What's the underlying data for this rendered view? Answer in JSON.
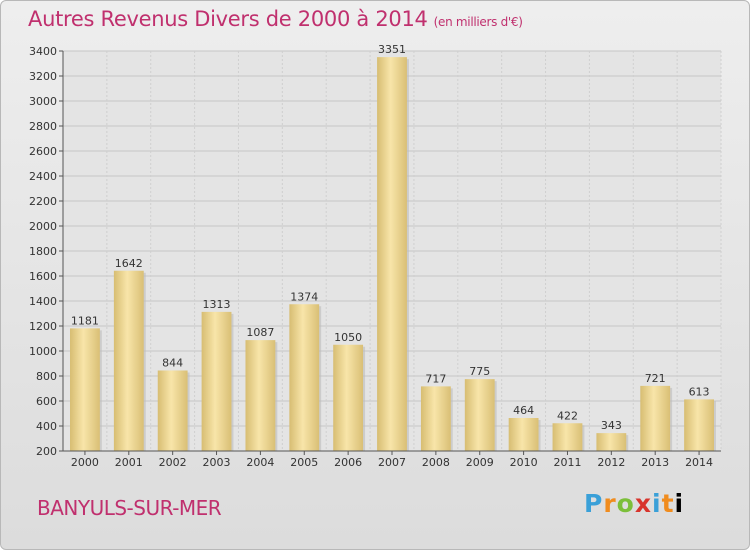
{
  "title": "Autres Revenus Divers de 2000 à 2014",
  "title_unit": "(en milliers d'€)",
  "city": "BANYULS-SUR-MER",
  "brand_letters": [
    "P",
    "r",
    "o",
    "x",
    "i",
    "t",
    "i"
  ],
  "colors": {
    "title": "#c0306e",
    "bar_light": "#f7e3a6",
    "bar_dark": "#d4b86a"
  },
  "chart_data": {
    "type": "bar",
    "title": "Autres Revenus Divers de 2000 à 2014",
    "subtitle": "(en milliers d'€)",
    "categories": [
      "2000",
      "2001",
      "2002",
      "2003",
      "2004",
      "2005",
      "2006",
      "2007",
      "2008",
      "2009",
      "2010",
      "2011",
      "2012",
      "2013",
      "2014"
    ],
    "values": [
      1181,
      1642,
      844,
      1313,
      1087,
      1374,
      1050,
      3351,
      717,
      775,
      464,
      422,
      343,
      721,
      613
    ],
    "ylim": [
      200,
      3400
    ],
    "yticks": [
      200,
      400,
      600,
      800,
      1000,
      1200,
      1400,
      1600,
      1800,
      2000,
      2200,
      2400,
      2600,
      2800,
      3000,
      3200,
      3400
    ],
    "grid": true,
    "legend": "none"
  }
}
